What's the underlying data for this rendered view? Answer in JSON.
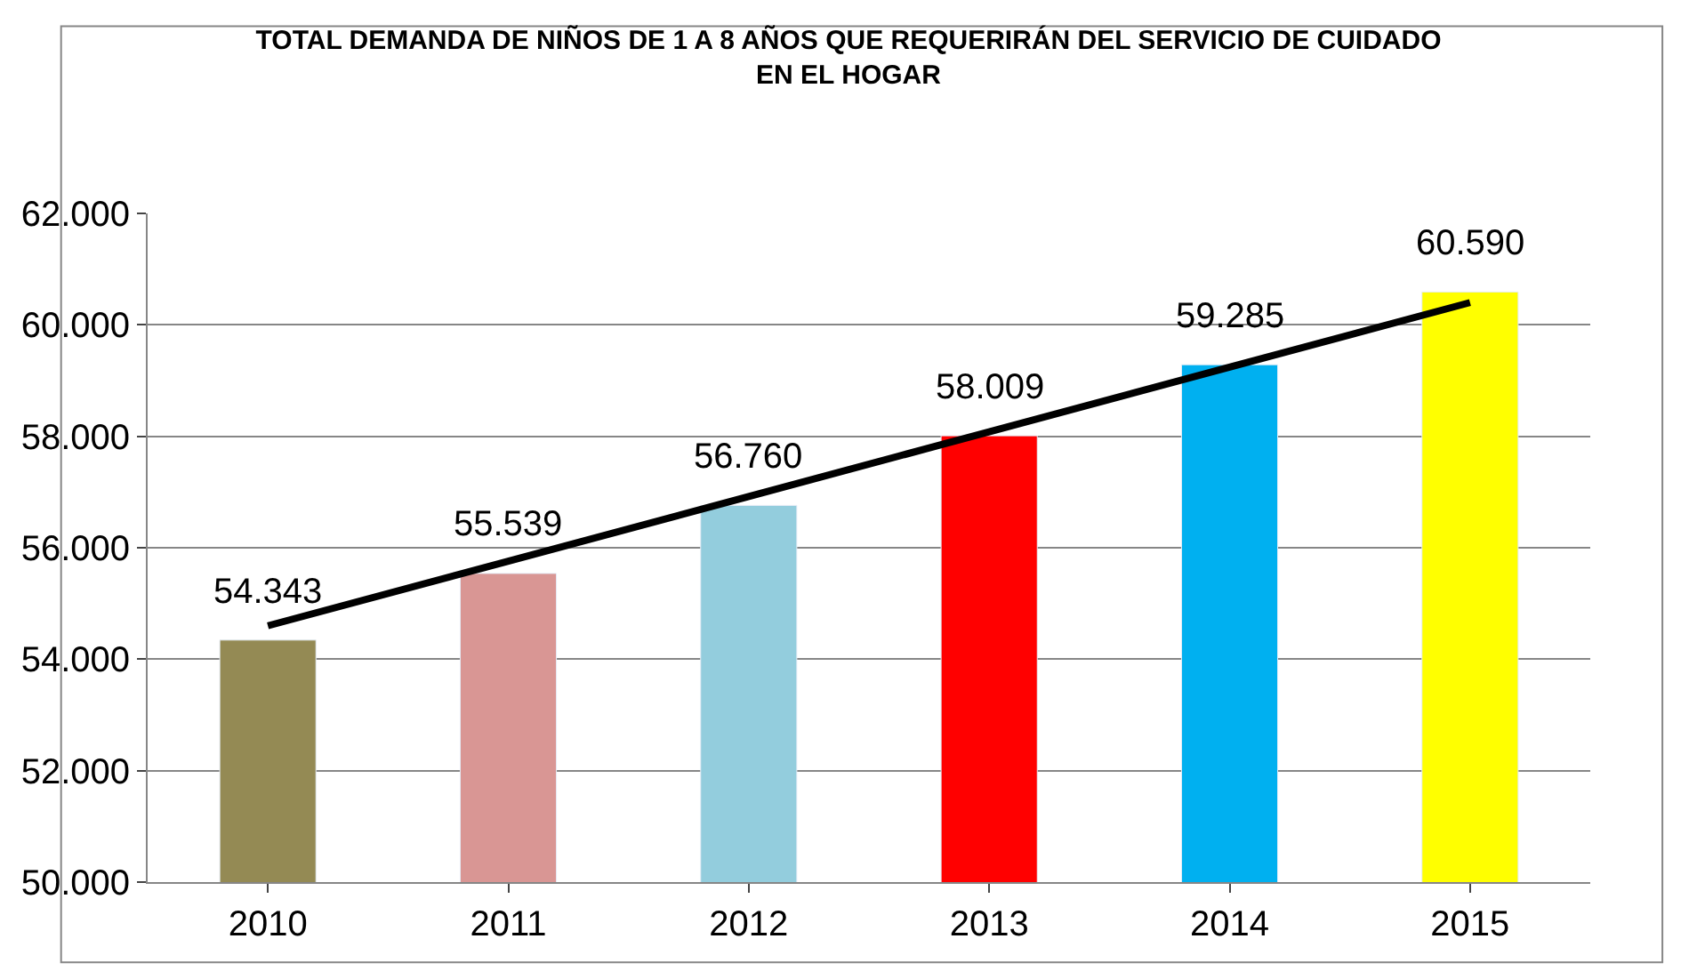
{
  "chart_data": {
    "type": "bar",
    "title": "TOTAL DEMANDA DE NIÑOS DE 1 A 8 AÑOS QUE REQUERIRÁN DEL SERVICIO DE CUIDADO EN EL HOGAR",
    "categories": [
      "2010",
      "2011",
      "2012",
      "2013",
      "2014",
      "2015"
    ],
    "series": [
      {
        "values": [
          54343,
          55539,
          56760,
          58009,
          59285,
          60590
        ],
        "colors": [
          "#948a54",
          "#d99694",
          "#93cddd",
          "#ff0000",
          "#00b0f0",
          "#ffff00"
        ],
        "value_labels": [
          "54.343",
          "55.539",
          "56.760",
          "58.009",
          "59.285",
          "60.590"
        ]
      },
      {
        "type": "line",
        "values": [
          54600,
          55760,
          56920,
          58080,
          59240,
          60400
        ],
        "color": "#000000"
      }
    ],
    "ylim": [
      50000,
      62000
    ],
    "yticks": [
      {
        "value": 50000,
        "label": "50.000"
      },
      {
        "value": 52000,
        "label": "52.000"
      },
      {
        "value": 54000,
        "label": "54.000"
      },
      {
        "value": 56000,
        "label": "56.000"
      },
      {
        "value": 58000,
        "label": "58.000"
      },
      {
        "value": 60000,
        "label": "60.000"
      },
      {
        "value": 62000,
        "label": "62.000"
      }
    ],
    "grid": "y"
  }
}
